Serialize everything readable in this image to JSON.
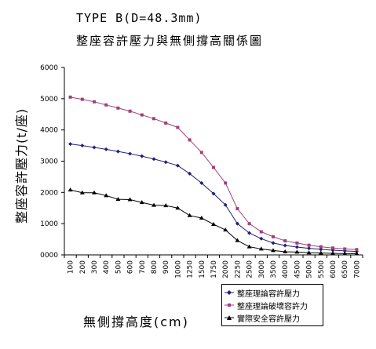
{
  "title": {
    "line1": "TYPE B(D=48.3mm)",
    "line2": "整座容許壓力與無側撐高關係圖"
  },
  "chart_data": {
    "type": "line",
    "title": "整座容許壓力與無側撐高關係圖",
    "subtitle": "TYPE B(D=48.3mm)",
    "xlabel": "無側撐高度(cm)",
    "ylabel": "整座容許壓力(t/座)",
    "ylim": [
      0,
      6000
    ],
    "yticks": [
      "0000",
      "1000",
      "2000",
      "3000",
      "4000",
      "5000",
      "6000"
    ],
    "grid": false,
    "legend_position": "bottom-right",
    "categories": [
      "100",
      "200",
      "300",
      "400",
      "500",
      "600",
      "700",
      "800",
      "900",
      "1000",
      "1250",
      "1500",
      "1750",
      "2000",
      "2250",
      "2500",
      "3000",
      "3500",
      "4000",
      "4500",
      "5000",
      "5500",
      "6000",
      "6500",
      "7000"
    ],
    "series": [
      {
        "name": "整座理論容許壓力",
        "color": "#1f1f7a",
        "marker": "diamond",
        "values": [
          3550,
          3500,
          3440,
          3380,
          3310,
          3240,
          3160,
          3070,
          2970,
          2860,
          2600,
          2300,
          1960,
          1600,
          1000,
          700,
          520,
          380,
          300,
          250,
          210,
          180,
          150,
          130,
          110
        ]
      },
      {
        "name": "整座理論破壞容許力",
        "color": "#a0407a",
        "marker": "square",
        "values": [
          5050,
          4980,
          4900,
          4800,
          4700,
          4600,
          4480,
          4360,
          4220,
          4080,
          3680,
          3280,
          2800,
          2300,
          1480,
          1000,
          740,
          580,
          450,
          380,
          310,
          260,
          220,
          190,
          170
        ]
      },
      {
        "name": "實際安全容許壓力",
        "color": "#000000",
        "marker": "triangle",
        "values": [
          2080,
          1990,
          1990,
          1900,
          1780,
          1770,
          1680,
          1590,
          1580,
          1500,
          1260,
          1180,
          980,
          800,
          460,
          260,
          190,
          140,
          100,
          90,
          70,
          60,
          50,
          40,
          40
        ]
      }
    ]
  }
}
